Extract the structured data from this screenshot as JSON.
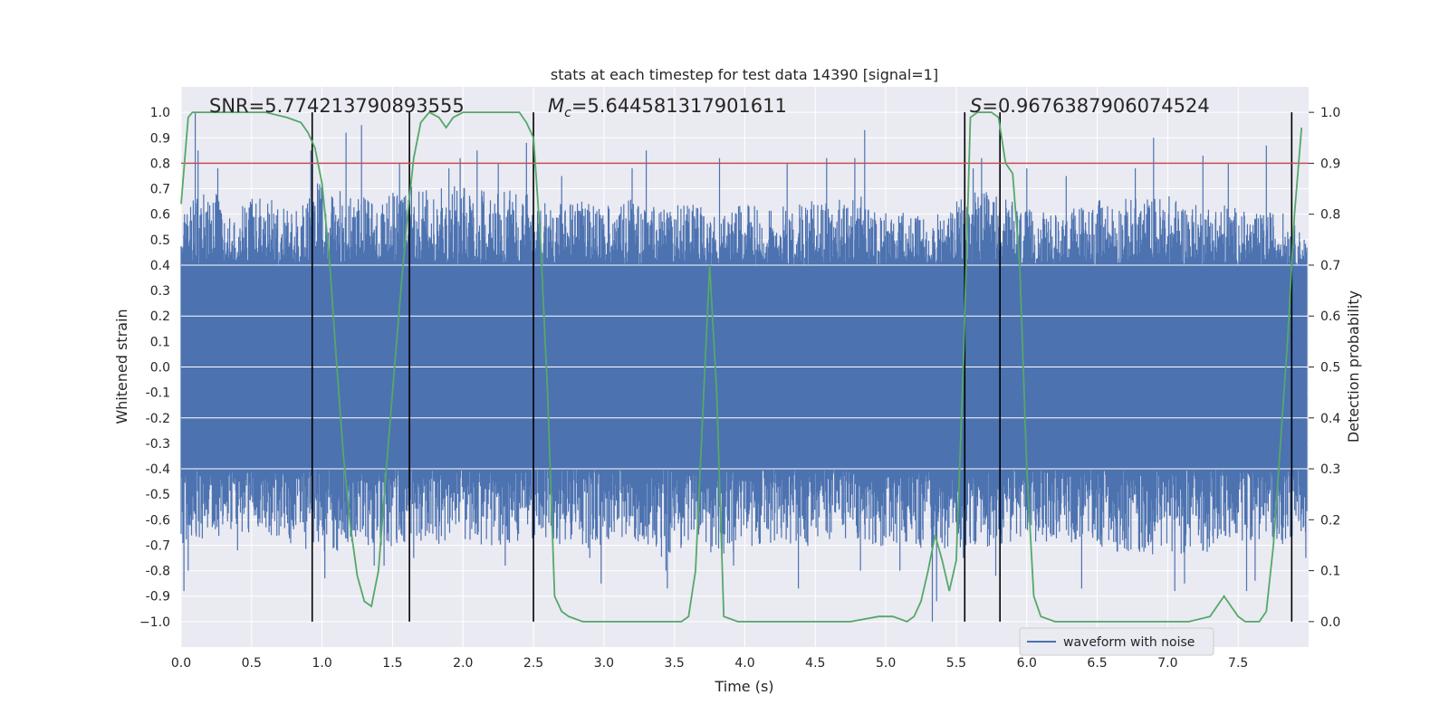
{
  "chart_data": {
    "type": "line",
    "title": "stats at each timestep for test data 14390 [signal=1]",
    "xlabel": "Time (s)",
    "ylabel": "Whitened strain",
    "y2label": "Detection probability",
    "xlim": [
      0.0,
      8.0
    ],
    "ylim": [
      -1.1,
      1.1
    ],
    "y2lim": [
      -0.05,
      1.05
    ],
    "x_ticks": [
      "0.0",
      "0.5",
      "1.0",
      "1.5",
      "2.0",
      "2.5",
      "3.0",
      "3.5",
      "4.0",
      "4.5",
      "5.0",
      "5.5",
      "6.0",
      "6.5",
      "7.0",
      "7.5"
    ],
    "y_ticks": [
      "1.0",
      "0.9",
      "0.8",
      "0.7",
      "0.6",
      "0.5",
      "0.4",
      "0.3",
      "0.2",
      "0.1",
      "0.0",
      "-0.1",
      "-0.2",
      "-0.3",
      "-0.4",
      "-0.5",
      "-0.6",
      "-0.7",
      "-0.8",
      "-0.9",
      "−1.0"
    ],
    "y2_ticks": [
      "1.0",
      "0.9",
      "0.8",
      "0.7",
      "0.6",
      "0.5",
      "0.4",
      "0.3",
      "0.2",
      "0.1",
      "0.0"
    ],
    "annotations": {
      "snr": "SNR=5.774213790893555",
      "mc_symbol": "M",
      "mc_subscript": "c",
      "mc_value": "=5.644581317901611",
      "s_symbol": "S",
      "s_value": "=0.9676387906074524"
    },
    "legend": {
      "label": "waveform with noise",
      "position": "bottom-right"
    },
    "threshold": {
      "y2": 0.9,
      "color": "#c44e52"
    },
    "event_lines_x": [
      0.93,
      1.62,
      2.5,
      5.56,
      5.81,
      7.88
    ],
    "waveform": {
      "name": "waveform with noise",
      "color": "#4c72b0",
      "dense_band": [
        -0.4,
        0.4
      ],
      "upper_envelope": [
        [
          0.0,
          0.62
        ],
        [
          0.2,
          0.7
        ],
        [
          0.4,
          0.65
        ],
        [
          0.6,
          0.68
        ],
        [
          0.8,
          0.6
        ],
        [
          1.0,
          0.75
        ],
        [
          1.2,
          0.68
        ],
        [
          1.4,
          0.65
        ],
        [
          1.6,
          0.72
        ],
        [
          1.8,
          0.7
        ],
        [
          2.0,
          0.72
        ],
        [
          2.2,
          0.68
        ],
        [
          2.4,
          0.7
        ],
        [
          2.6,
          0.65
        ],
        [
          2.8,
          0.66
        ],
        [
          3.0,
          0.63
        ],
        [
          3.2,
          0.66
        ],
        [
          3.4,
          0.62
        ],
        [
          3.6,
          0.65
        ],
        [
          3.8,
          0.6
        ],
        [
          4.0,
          0.64
        ],
        [
          4.2,
          0.63
        ],
        [
          4.4,
          0.66
        ],
        [
          4.6,
          0.65
        ],
        [
          4.8,
          0.68
        ],
        [
          5.0,
          0.62
        ],
        [
          5.2,
          0.6
        ],
        [
          5.4,
          0.6
        ],
        [
          5.6,
          0.7
        ],
        [
          5.8,
          0.68
        ],
        [
          6.0,
          0.62
        ],
        [
          6.2,
          0.6
        ],
        [
          6.4,
          0.65
        ],
        [
          6.6,
          0.66
        ],
        [
          6.8,
          0.67
        ],
        [
          7.0,
          0.68
        ],
        [
          7.2,
          0.64
        ],
        [
          7.4,
          0.65
        ],
        [
          7.6,
          0.6
        ],
        [
          7.8,
          0.62
        ],
        [
          8.0,
          0.5
        ]
      ],
      "lower_envelope": [
        [
          0.0,
          -0.7
        ],
        [
          0.2,
          -0.68
        ],
        [
          0.4,
          -0.65
        ],
        [
          0.6,
          -0.66
        ],
        [
          0.8,
          -0.7
        ],
        [
          1.0,
          -0.75
        ],
        [
          1.2,
          -0.7
        ],
        [
          1.4,
          -0.7
        ],
        [
          1.6,
          -0.72
        ],
        [
          1.8,
          -0.7
        ],
        [
          2.0,
          -0.68
        ],
        [
          2.2,
          -0.72
        ],
        [
          2.4,
          -0.7
        ],
        [
          2.6,
          -0.68
        ],
        [
          2.8,
          -0.72
        ],
        [
          3.0,
          -0.7
        ],
        [
          3.2,
          -0.68
        ],
        [
          3.4,
          -0.75
        ],
        [
          3.6,
          -0.7
        ],
        [
          3.8,
          -0.75
        ],
        [
          4.0,
          -0.72
        ],
        [
          4.2,
          -0.7
        ],
        [
          4.4,
          -0.72
        ],
        [
          4.6,
          -0.68
        ],
        [
          4.8,
          -0.7
        ],
        [
          5.0,
          -0.72
        ],
        [
          5.2,
          -0.7
        ],
        [
          5.4,
          -0.75
        ],
        [
          5.6,
          -0.72
        ],
        [
          5.8,
          -0.7
        ],
        [
          6.0,
          -0.7
        ],
        [
          6.2,
          -0.68
        ],
        [
          6.4,
          -0.7
        ],
        [
          6.6,
          -0.72
        ],
        [
          6.8,
          -0.75
        ],
        [
          7.0,
          -0.72
        ],
        [
          7.2,
          -0.75
        ],
        [
          7.4,
          -0.7
        ],
        [
          7.6,
          -0.68
        ],
        [
          7.8,
          -0.7
        ],
        [
          8.0,
          -0.65
        ]
      ],
      "peaks": [
        [
          0.1,
          1.0
        ],
        [
          0.12,
          0.85
        ],
        [
          0.26,
          0.78
        ],
        [
          0.26,
          -0.6
        ],
        [
          0.02,
          -0.88
        ],
        [
          0.05,
          -0.8
        ],
        [
          0.4,
          -0.72
        ],
        [
          0.92,
          0.85
        ],
        [
          1.02,
          -0.83
        ],
        [
          1.17,
          0.92
        ],
        [
          1.28,
          0.95
        ],
        [
          1.37,
          -0.78
        ],
        [
          1.44,
          -0.78
        ],
        [
          1.55,
          0.8
        ],
        [
          1.65,
          -0.75
        ],
        [
          1.9,
          0.78
        ],
        [
          1.98,
          0.82
        ],
        [
          2.1,
          0.85
        ],
        [
          2.25,
          0.8
        ],
        [
          2.3,
          -0.78
        ],
        [
          2.45,
          0.88
        ],
        [
          2.7,
          0.75
        ],
        [
          2.9,
          -0.75
        ],
        [
          2.98,
          -0.85
        ],
        [
          3.2,
          0.78
        ],
        [
          3.3,
          0.85
        ],
        [
          3.44,
          -0.8
        ],
        [
          3.45,
          -0.87
        ],
        [
          3.82,
          0.82
        ],
        [
          3.92,
          -0.78
        ],
        [
          4.3,
          0.8
        ],
        [
          4.38,
          -0.87
        ],
        [
          4.58,
          0.82
        ],
        [
          4.78,
          0.82
        ],
        [
          4.85,
          0.93
        ],
        [
          4.82,
          -0.8
        ],
        [
          5.1,
          -0.8
        ],
        [
          5.33,
          -1.0
        ],
        [
          5.36,
          -0.92
        ],
        [
          5.55,
          -0.75
        ],
        [
          5.62,
          0.78
        ],
        [
          5.68,
          0.82
        ],
        [
          5.78,
          -0.82
        ],
        [
          6.0,
          0.78
        ],
        [
          6.28,
          0.75
        ],
        [
          6.39,
          -0.87
        ],
        [
          6.77,
          0.78
        ],
        [
          6.9,
          0.9
        ],
        [
          7.05,
          -0.88
        ],
        [
          7.12,
          -0.85
        ],
        [
          7.25,
          0.83
        ],
        [
          7.43,
          0.8
        ],
        [
          7.56,
          -0.88
        ],
        [
          7.62,
          -0.84
        ],
        [
          7.7,
          0.87
        ],
        [
          7.98,
          -0.75
        ]
      ]
    },
    "detection_probability": {
      "name": "detection probability",
      "color": "#55a868",
      "x": [
        0.0,
        0.05,
        0.08,
        0.12,
        0.2,
        0.3,
        0.45,
        0.6,
        0.75,
        0.85,
        0.9,
        0.95,
        1.0,
        1.05,
        1.1,
        1.15,
        1.2,
        1.25,
        1.3,
        1.35,
        1.4,
        1.45,
        1.5,
        1.55,
        1.6,
        1.65,
        1.7,
        1.76,
        1.83,
        1.88,
        1.93,
        2.0,
        2.1,
        2.2,
        2.3,
        2.4,
        2.45,
        2.5,
        2.55,
        2.6,
        2.65,
        2.7,
        2.75,
        2.85,
        2.95,
        3.05,
        3.15,
        3.3,
        3.45,
        3.55,
        3.6,
        3.65,
        3.7,
        3.75,
        3.8,
        3.85,
        3.95,
        4.05,
        4.2,
        4.35,
        4.55,
        4.75,
        4.95,
        5.05,
        5.15,
        5.2,
        5.25,
        5.3,
        5.35,
        5.4,
        5.45,
        5.5,
        5.55,
        5.6,
        5.65,
        5.75,
        5.8,
        5.85,
        5.9,
        5.95,
        6.0,
        6.05,
        6.1,
        6.2,
        6.35,
        6.5,
        6.65,
        6.8,
        6.95,
        7.15,
        7.3,
        7.35,
        7.4,
        7.45,
        7.5,
        7.55,
        7.6,
        7.65,
        7.7,
        7.75,
        7.8,
        7.85,
        7.9,
        7.95
      ],
      "y": [
        0.82,
        0.99,
        1.0,
        1.0,
        1.0,
        1.0,
        1.0,
        1.0,
        0.99,
        0.98,
        0.96,
        0.93,
        0.86,
        0.72,
        0.52,
        0.33,
        0.19,
        0.09,
        0.04,
        0.03,
        0.1,
        0.28,
        0.45,
        0.62,
        0.78,
        0.91,
        0.98,
        1.0,
        0.99,
        0.97,
        0.99,
        1.0,
        1.0,
        1.0,
        1.0,
        1.0,
        0.98,
        0.95,
        0.75,
        0.45,
        0.05,
        0.02,
        0.01,
        0.0,
        0.0,
        0.0,
        0.0,
        0.0,
        0.0,
        0.0,
        0.01,
        0.1,
        0.4,
        0.7,
        0.45,
        0.01,
        0.0,
        0.0,
        0.0,
        0.0,
        0.0,
        0.0,
        0.01,
        0.01,
        0.0,
        0.01,
        0.04,
        0.1,
        0.17,
        0.12,
        0.06,
        0.12,
        0.5,
        0.99,
        1.0,
        1.0,
        0.99,
        0.9,
        0.88,
        0.7,
        0.3,
        0.05,
        0.01,
        0.0,
        0.0,
        0.0,
        0.0,
        0.0,
        0.0,
        0.0,
        0.01,
        0.03,
        0.05,
        0.03,
        0.01,
        0.0,
        0.0,
        0.0,
        0.02,
        0.15,
        0.35,
        0.55,
        0.8,
        0.97
      ]
    }
  }
}
